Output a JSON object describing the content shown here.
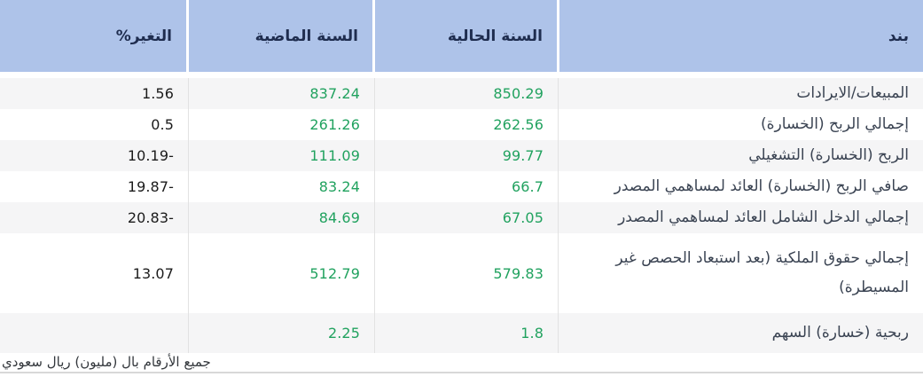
{
  "table": {
    "columns": [
      {
        "key": "item",
        "label": "بند"
      },
      {
        "key": "current_year",
        "label": "السنة الحالية"
      },
      {
        "key": "previous_year",
        "label": "السنة الماضية"
      },
      {
        "key": "change_pct",
        "label": "التغير%"
      }
    ],
    "rows": [
      {
        "item": "المبيعات/الايرادات",
        "current_year": "850.29",
        "previous_year": "837.24",
        "change_pct": "1.56"
      },
      {
        "item": "إجمالي الربح (الخسارة)",
        "current_year": "262.56",
        "previous_year": "261.26",
        "change_pct": "0.5"
      },
      {
        "item": "الربح (الخسارة) التشغيلي",
        "current_year": "99.77",
        "previous_year": "111.09",
        "change_pct": "-10.19"
      },
      {
        "item": "صافي الربح (الخسارة) العائد لمساهمي المصدر",
        "current_year": "66.7",
        "previous_year": "83.24",
        "change_pct": "-19.87"
      },
      {
        "item": "إجمالي الدخل الشامل العائد لمساهمي المصدر",
        "current_year": "67.05",
        "previous_year": "84.69",
        "change_pct": "-20.83"
      },
      {
        "item": "إجمالي حقوق الملكية (بعد استبعاد الحصص غير المسيطرة)",
        "current_year": "579.83",
        "previous_year": "512.79",
        "change_pct": "13.07"
      },
      {
        "item": "ربحية (خسارة) السهم",
        "current_year": "1.8",
        "previous_year": "2.25",
        "change_pct": ""
      }
    ]
  },
  "footer": {
    "note": "جميع الأرقام بال (مليون) ريال سعودي"
  },
  "colors": {
    "header_bg": "#aec3e9",
    "header_text": "#1f2d4f",
    "value_green": "#21a25f",
    "change_text": "#1b1b1b",
    "row_alt_bg": "#f5f5f6",
    "separator": "#e2e2e2"
  }
}
